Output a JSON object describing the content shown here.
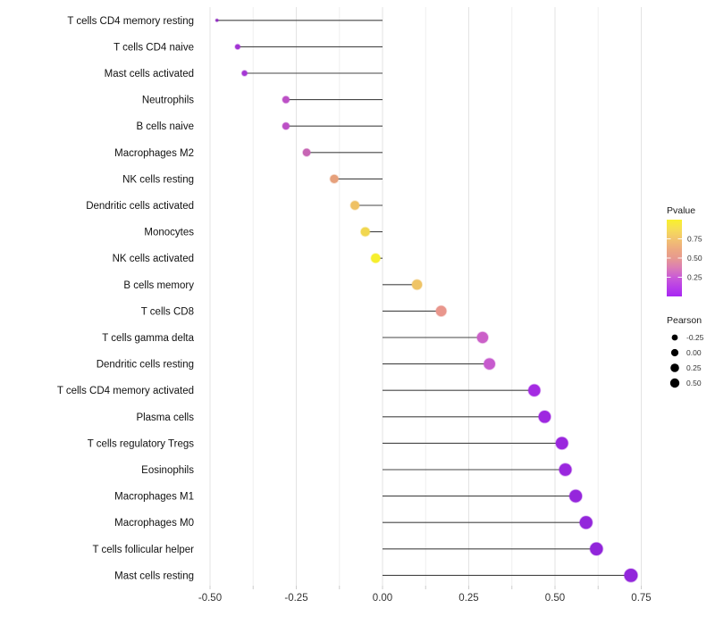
{
  "chart_data": {
    "type": "lollipop",
    "orientation": "horizontal",
    "title": "",
    "xlabel": "",
    "ylabel": "",
    "x_axis": {
      "major_ticks": [
        -0.5,
        -0.25,
        0.0,
        0.25,
        0.5,
        0.75
      ],
      "major_tick_labels": [
        "-0.50",
        "-0.25",
        "0.00",
        "0.25",
        "0.50",
        "0.75"
      ],
      "minor_ticks": [
        -0.375,
        -0.125,
        0.125,
        0.375,
        0.625
      ],
      "range": [
        -0.535,
        0.785
      ],
      "baseline": 0.0
    },
    "rows": [
      {
        "label": "T cells CD4 memory resting",
        "pearson": -0.48,
        "color": "#8E2BC0"
      },
      {
        "label": "T cells CD4 naive",
        "pearson": -0.42,
        "color": "#A233D4"
      },
      {
        "label": "Mast cells activated",
        "pearson": -0.4,
        "color": "#A537D4"
      },
      {
        "label": "Neutrophils",
        "pearson": -0.28,
        "color": "#BC50C6"
      },
      {
        "label": "B cells naive",
        "pearson": -0.28,
        "color": "#BC50C6"
      },
      {
        "label": "Macrophages M2",
        "pearson": -0.22,
        "color": "#C765B4"
      },
      {
        "label": "NK cells resting",
        "pearson": -0.14,
        "color": "#E6A07B"
      },
      {
        "label": "Dendritic cells activated",
        "pearson": -0.08,
        "color": "#EFC163"
      },
      {
        "label": "Monocytes",
        "pearson": -0.05,
        "color": "#F1D74F"
      },
      {
        "label": "NK cells activated",
        "pearson": -0.02,
        "color": "#F6EF2D"
      },
      {
        "label": "B cells memory",
        "pearson": 0.1,
        "color": "#EFC466"
      },
      {
        "label": "T cells CD8",
        "pearson": 0.17,
        "color": "#E9968C"
      },
      {
        "label": "T cells gamma delta",
        "pearson": 0.29,
        "color": "#CB60C8"
      },
      {
        "label": "Dendritic cells resting",
        "pearson": 0.31,
        "color": "#C75BCE"
      },
      {
        "label": "T cells CD4 memory activated",
        "pearson": 0.44,
        "color": "#A42BE2"
      },
      {
        "label": "Plasma cells",
        "pearson": 0.47,
        "color": "#9E28E0"
      },
      {
        "label": "T cells regulatory  Tregs",
        "pearson": 0.52,
        "color": "#9A27DE"
      },
      {
        "label": "Eosinophils",
        "pearson": 0.53,
        "color": "#9A27DE"
      },
      {
        "label": "Macrophages M1",
        "pearson": 0.56,
        "color": "#9526DC"
      },
      {
        "label": "Macrophages M0",
        "pearson": 0.59,
        "color": "#9326DB"
      },
      {
        "label": "T cells follicular helper",
        "pearson": 0.62,
        "color": "#9125DA"
      },
      {
        "label": "Mast cells resting",
        "pearson": 0.72,
        "color": "#9226DB"
      }
    ],
    "legends": {
      "pvalue": {
        "title": "Pvalue",
        "tick_labels": [
          "0.75",
          "0.50",
          "0.25"
        ],
        "tick_values": [
          0.75,
          0.5,
          0.25
        ],
        "bar_range": [
          0,
          1
        ],
        "gradient_stops": [
          {
            "offset": "0%",
            "color": "#F9F12C"
          },
          {
            "offset": "12%",
            "color": "#F6DE56"
          },
          {
            "offset": "25%",
            "color": "#F2C46F"
          },
          {
            "offset": "38%",
            "color": "#EDAA80"
          },
          {
            "offset": "50%",
            "color": "#E79A8F"
          },
          {
            "offset": "62%",
            "color": "#DC7FB3"
          },
          {
            "offset": "75%",
            "color": "#CA5BD6"
          },
          {
            "offset": "88%",
            "color": "#B83EE8"
          },
          {
            "offset": "100%",
            "color": "#A827F2"
          }
        ]
      },
      "pearson": {
        "title": "Pearson",
        "entries": [
          {
            "label": "-0.25",
            "radius": 3.4
          },
          {
            "label": "0.00",
            "radius": 4.1
          },
          {
            "label": "0.25",
            "radius": 4.8
          },
          {
            "label": "0.50",
            "radius": 5.2
          }
        ],
        "dot_color": "#000000"
      }
    },
    "styles": {
      "background": "#ffffff",
      "grid_major": "#e3e3e3",
      "grid_minor": "#efefef",
      "stem": "#454545",
      "axis_tick": "#cccccc",
      "x_tick_text": "#333333",
      "y_label_text": "#111111",
      "legend_text": "#333333"
    }
  }
}
